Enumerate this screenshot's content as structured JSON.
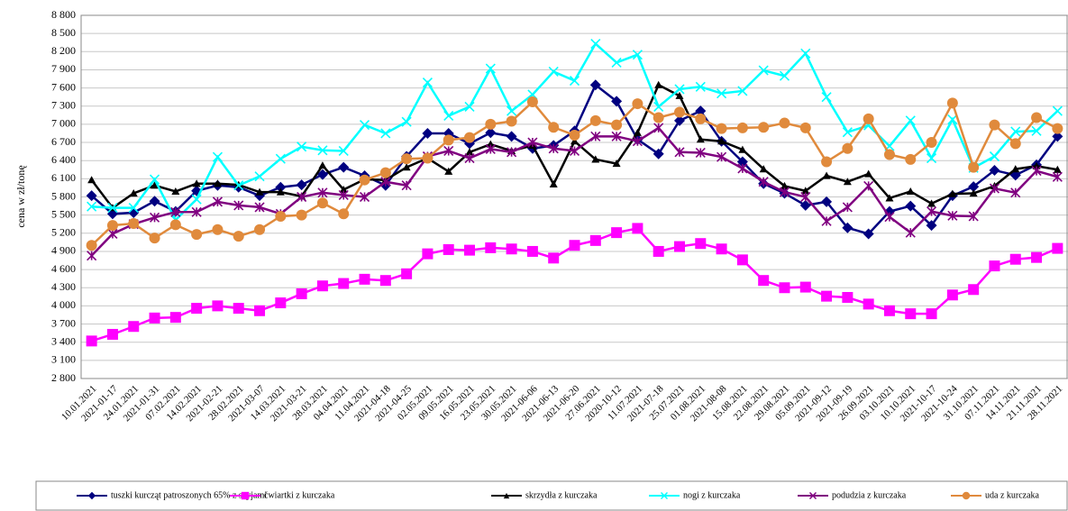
{
  "chart_data": {
    "type": "line",
    "y_label": "cena w zł/tonę",
    "categories": [
      "10.01.2021",
      "2021-01-17",
      "24.01.2021",
      "2021-01-31",
      "07.02.2021",
      "14.02.2021",
      "2021-02-21",
      "28.02.2021",
      "2021-03-07",
      "14.03.2021",
      "2021-03-21",
      "28.03.2021",
      "04.04.2021",
      "11.04.2021",
      "2021-04-18",
      "2021-04-25",
      "02.05.2021",
      "09.05.2021",
      "16.05.2021",
      "23.05.2021",
      "30.05.2021",
      "2021-06-06",
      "2021-06-13",
      "2021-06-20",
      "27.06.2021",
      "2020-10-12",
      "11.07.2021",
      "2021-07-18",
      "25.07.2021",
      "01.08.2021",
      "2021-08-08",
      "15.08.2021",
      "22.08.2021",
      "29.08.2021",
      "05.09.2021",
      "2021-09-12",
      "2021-09-19",
      "26.09.2021",
      "03.10.2021",
      "10.10.2021",
      "2021-10-17",
      "2021-10-24",
      "31.10.2021",
      "07.11.2021",
      "14.11.2021",
      "21.11.2021",
      "28.11.2021"
    ],
    "series": [
      {
        "name": "tuszki kurcząt patroszonych 65% z szyjami",
        "color": "#000080",
        "marker": "diamond",
        "values": [
          5820,
          5520,
          5540,
          5730,
          5560,
          5900,
          5990,
          5960,
          5820,
          5960,
          6000,
          6170,
          6290,
          6150,
          5990,
          6470,
          6850,
          6850,
          6680,
          6860,
          6800,
          6600,
          6650,
          6890,
          7650,
          7380,
          6750,
          6510,
          7060,
          7220,
          6720,
          6380,
          6020,
          5860,
          5660,
          5720,
          5290,
          5190,
          5560,
          5650,
          5330,
          5820,
          5970,
          6240,
          6160,
          6330,
          6800
        ]
      },
      {
        "name": "ćwiartki z kurczaka",
        "color": "#ff00ff",
        "marker": "square",
        "values": [
          3420,
          3530,
          3660,
          3800,
          3810,
          3960,
          4000,
          3960,
          3920,
          4050,
          4200,
          4330,
          4370,
          4440,
          4420,
          4530,
          4860,
          4930,
          4920,
          4960,
          4940,
          4900,
          4790,
          5000,
          5080,
          5210,
          5280,
          4900,
          4980,
          5030,
          4940,
          4760,
          4420,
          4300,
          4310,
          4160,
          4140,
          4030,
          3920,
          3870,
          3870,
          4180,
          4270,
          4660,
          4770,
          4800,
          4950
        ]
      },
      {
        "name": "skrzydła z kurczaka",
        "color": "#000000",
        "marker": "triangle",
        "values": [
          6080,
          5620,
          5860,
          5990,
          5890,
          6020,
          6020,
          6000,
          5880,
          5880,
          5810,
          6320,
          5920,
          6090,
          6080,
          6290,
          6440,
          6220,
          6540,
          6670,
          6560,
          6650,
          6010,
          6720,
          6420,
          6350,
          6860,
          7650,
          7470,
          6750,
          6720,
          6580,
          6260,
          5980,
          5900,
          6150,
          6050,
          6180,
          5780,
          5890,
          5690,
          5850,
          5860,
          5980,
          6260,
          6310,
          6250
        ]
      },
      {
        "name": "nogi z kurczaka",
        "color": "#00ffff",
        "marker": "x",
        "values": [
          5640,
          5620,
          5620,
          6090,
          5420,
          5760,
          6460,
          5990,
          6140,
          6430,
          6630,
          6570,
          6560,
          6990,
          6850,
          7040,
          7690,
          7140,
          7290,
          7920,
          7220,
          7490,
          7870,
          7720,
          8330,
          8020,
          8150,
          7290,
          7580,
          7620,
          7510,
          7550,
          7890,
          7800,
          8170,
          7450,
          6870,
          6980,
          6640,
          7060,
          6440,
          7080,
          6280,
          6470,
          6880,
          6890,
          7220
        ]
      },
      {
        "name": "podudzia z kurczaka",
        "color": "#800080",
        "marker": "asterisk",
        "values": [
          4830,
          5190,
          5350,
          5460,
          5550,
          5550,
          5720,
          5660,
          5630,
          5520,
          5800,
          5870,
          5830,
          5800,
          6050,
          5990,
          6470,
          6560,
          6440,
          6590,
          6540,
          6700,
          6600,
          6560,
          6800,
          6800,
          6720,
          6940,
          6540,
          6530,
          6460,
          6270,
          6050,
          5880,
          5800,
          5400,
          5630,
          5980,
          5470,
          5210,
          5560,
          5490,
          5480,
          5940,
          5870,
          6230,
          6130
        ]
      },
      {
        "name": "uda z kurczaka",
        "color": "#e08a3c",
        "marker": "circle",
        "values": [
          5000,
          5330,
          5360,
          5120,
          5340,
          5180,
          5260,
          5150,
          5260,
          5480,
          5500,
          5700,
          5520,
          6080,
          6200,
          6430,
          6440,
          6740,
          6780,
          7000,
          7050,
          7370,
          6950,
          6820,
          7060,
          6990,
          7340,
          7110,
          7200,
          7090,
          6930,
          6940,
          6950,
          7020,
          6940,
          6380,
          6600,
          7090,
          6500,
          6420,
          6700,
          7350,
          6290,
          6990,
          6680,
          7110,
          6930
        ]
      }
    ],
    "ylim": [
      2800,
      8800
    ],
    "yticks": [
      {
        "value": 2800,
        "label": "2 800"
      },
      {
        "value": 3100,
        "label": "3 100"
      },
      {
        "value": 3400,
        "label": "3 400"
      },
      {
        "value": 3700,
        "label": "3 700"
      },
      {
        "value": 4000,
        "label": "4 000"
      },
      {
        "value": 4300,
        "label": "4 300"
      },
      {
        "value": 4600,
        "label": "4 600"
      },
      {
        "value": 4900,
        "label": "4 900"
      },
      {
        "value": 5200,
        "label": "5 200"
      },
      {
        "value": 5500,
        "label": "5 500"
      },
      {
        "value": 5800,
        "label": "5 800"
      },
      {
        "value": 6100,
        "label": "6 100"
      },
      {
        "value": 6400,
        "label": "6 400"
      },
      {
        "value": 6700,
        "label": "6 700"
      },
      {
        "value": 7000,
        "label": "7 000"
      },
      {
        "value": 7300,
        "label": "7 300"
      },
      {
        "value": 7600,
        "label": "7 600"
      },
      {
        "value": 7900,
        "label": "7 900"
      },
      {
        "value": 8200,
        "label": "8 200"
      },
      {
        "value": 8500,
        "label": "8 500"
      },
      {
        "value": 8800,
        "label": "8 800"
      }
    ],
    "grid": true,
    "legend": "bottom"
  }
}
